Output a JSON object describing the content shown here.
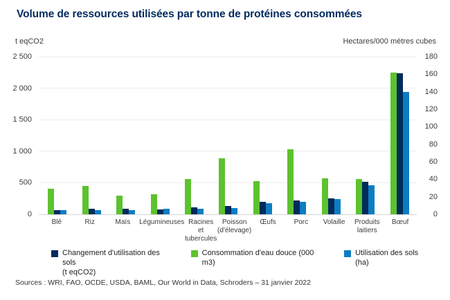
{
  "title": "Volume de ressources utilisées par tonne de protéines consommées",
  "title_color": "#002a5e",
  "sources": "Sources : WRI, FAO, OCDE, USDA, BAML, Our World in Data, Schroders – 31 janvier 2022",
  "chart_data": {
    "type": "bar",
    "title": "Volume de ressources utilisées par tonne de protéines consommées",
    "grid": true,
    "legend_position": "bottom",
    "categories": [
      "Blé",
      "Riz",
      "Maïs",
      "Légumineuses",
      "Racines\net tubercules",
      "Poisson\n(d'élevage)",
      "Œufs",
      "Porc",
      "Volaille",
      "Produits\nlaitiers",
      "Bœuf"
    ],
    "left_axis": {
      "unit": "t eqCO2",
      "max": 2500,
      "min": 0,
      "ticks": [
        "2 500",
        "2 000",
        "1 500",
        "1 000",
        "500",
        "0"
      ]
    },
    "right_axis": {
      "unit": "Hectares/000 mètres cubes",
      "max": 180,
      "min": 0,
      "ticks": [
        "180",
        "160",
        "140",
        "120",
        "100",
        "80",
        "60",
        "40",
        "20",
        "0"
      ]
    },
    "plot_order": [
      1,
      0,
      2
    ],
    "series": [
      {
        "name": "Changement d'utilisation des sols (t eqCO2)",
        "legend_label": "Changement d'utilisation des sols\n(t eqCO2)",
        "axis": "left",
        "color": "#002b5c",
        "values": [
          70,
          90,
          85,
          80,
          110,
          130,
          195,
          220,
          255,
          515,
          2240
        ]
      },
      {
        "name": "Consommation d'eau douce (000 m3)",
        "legend_label": "Consommation d'eau douce (000 m3)",
        "axis": "right",
        "color": "#5cc22e",
        "values": [
          29,
          32,
          21,
          23,
          40,
          64,
          38,
          74,
          41,
          40,
          162
        ]
      },
      {
        "name": "Utilisation des sols (ha)",
        "legend_label": "Utilisation des sols (ha)",
        "axis": "right",
        "color": "#0d7dc2",
        "values": [
          5,
          5,
          5,
          6,
          6,
          7,
          13,
          14,
          17,
          33,
          140
        ]
      }
    ]
  }
}
